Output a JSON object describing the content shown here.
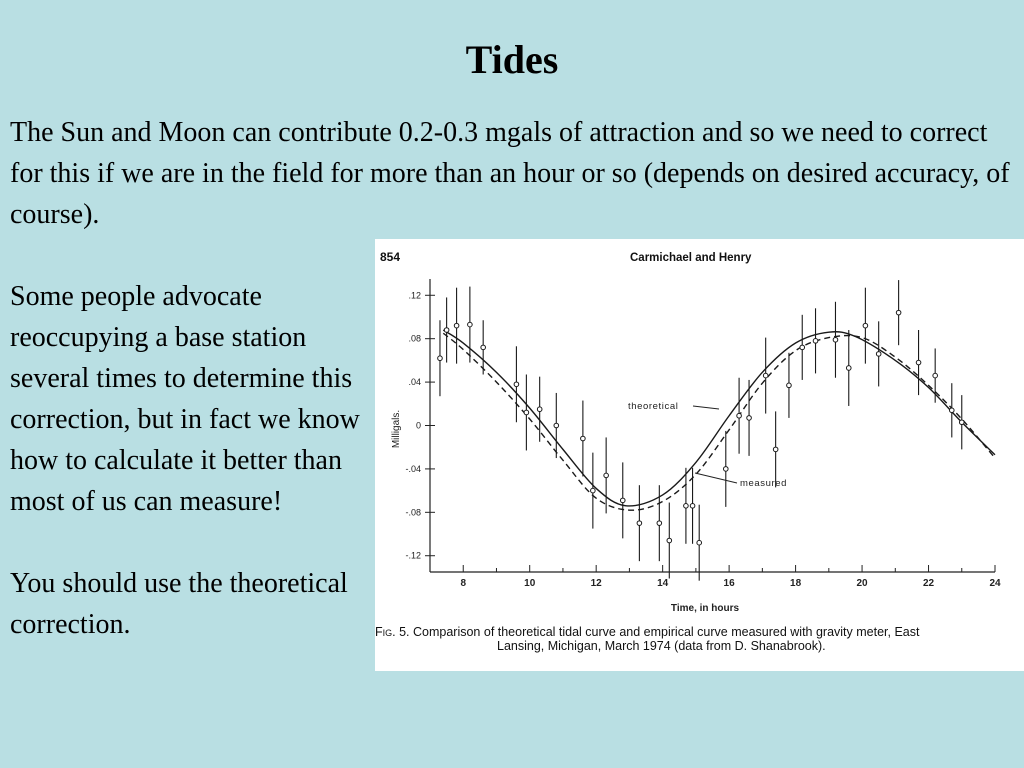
{
  "slide": {
    "title": "Tides",
    "intro": "The Sun and Moon can contribute 0.2-0.3 mgals of attraction and so we need to correct for this if we are in the field for more than an hour or so (depends on desired accuracy, of course).",
    "paragraph2": "Some people advocate reoccupying a base station several times to determine this correction, but in fact we know how to calculate it better than most of us can measure!",
    "paragraph3": "You should use the theoretical correction."
  },
  "figure": {
    "page_number": "854",
    "header": "Carmichael and Henry",
    "caption_label": "Fig. 5.",
    "caption_line1": "Comparison of theoretical tidal curve and empirical curve measured with gravity meter, East",
    "caption_line2": "Lansing, Michigan, March 1974 (data from D. Shanabrook)."
  },
  "chart_data": {
    "type": "line",
    "xlabel": "Time, in hours",
    "ylabel": "Milligals",
    "xlim": [
      7,
      24
    ],
    "ylim": [
      -0.135,
      0.135
    ],
    "x_ticks": [
      8,
      10,
      12,
      14,
      16,
      18,
      20,
      22,
      24
    ],
    "x_tick_labels": [
      "8",
      "10",
      "12",
      "14",
      "16",
      "18",
      "20",
      "22",
      "24"
    ],
    "y_ticks": [
      0.12,
      0.08,
      0.04,
      0,
      -0.04,
      -0.08,
      -0.12
    ],
    "y_tick_labels": [
      ".12",
      ".08",
      ".04",
      "0",
      "-.04",
      "-.08",
      "-.12"
    ],
    "annotations": [
      "theoretical",
      "measured"
    ],
    "grid": false,
    "series": [
      {
        "name": "theoretical",
        "style": "solid",
        "x": [
          7.4,
          8,
          9,
          10,
          11,
          12,
          12.9,
          14,
          15,
          16,
          17,
          18,
          19,
          19.8,
          21,
          22,
          23,
          24
        ],
        "y": [
          0.088,
          0.076,
          0.049,
          0.016,
          -0.022,
          -0.058,
          -0.074,
          -0.064,
          -0.034,
          0.009,
          0.049,
          0.076,
          0.086,
          0.082,
          0.06,
          0.035,
          0.003,
          -0.027
        ]
      },
      {
        "name": "measured",
        "style": "dashed",
        "x": [
          7.4,
          8,
          9,
          10,
          11,
          12,
          13,
          14,
          15,
          16,
          17,
          18,
          19,
          20,
          21,
          22,
          23,
          24
        ],
        "y": [
          0.085,
          0.07,
          0.04,
          0.006,
          -0.032,
          -0.067,
          -0.078,
          -0.07,
          -0.045,
          -0.004,
          0.039,
          0.069,
          0.081,
          0.081,
          0.063,
          0.037,
          0.006,
          -0.03
        ]
      },
      {
        "name": "data points",
        "style": "points_with_error_bars",
        "x": [
          7.3,
          7.5,
          7.8,
          8.2,
          8.6,
          9.6,
          9.9,
          10.3,
          10.8,
          11.6,
          11.9,
          12.3,
          12.8,
          13.3,
          13.9,
          14.2,
          14.7,
          14.9,
          15.1,
          15.9,
          16.3,
          16.6,
          17.1,
          17.4,
          17.8,
          18.2,
          18.6,
          19.2,
          19.6,
          20.1,
          20.5,
          21.1,
          21.7,
          22.2,
          22.7,
          23.0
        ],
        "y": [
          0.062,
          0.088,
          0.092,
          0.093,
          0.072,
          0.038,
          0.012,
          0.015,
          0.0,
          -0.012,
          -0.06,
          -0.046,
          -0.069,
          -0.09,
          -0.09,
          -0.106,
          -0.074,
          -0.074,
          -0.108,
          -0.04,
          0.009,
          0.007,
          0.046,
          -0.022,
          0.037,
          0.072,
          0.078,
          0.079,
          0.053,
          0.092,
          0.066,
          0.104,
          0.058,
          0.046,
          0.014,
          0.003
        ],
        "error": [
          0.035,
          0.03,
          0.035,
          0.035,
          0.025,
          0.035,
          0.035,
          0.03,
          0.03,
          0.035,
          0.035,
          0.035,
          0.035,
          0.035,
          0.035,
          0.035,
          0.035,
          0.035,
          0.035,
          0.035,
          0.035,
          0.035,
          0.035,
          0.035,
          0.03,
          0.03,
          0.03,
          0.035,
          0.035,
          0.035,
          0.03,
          0.03,
          0.03,
          0.025,
          0.025,
          0.025
        ]
      }
    ]
  }
}
